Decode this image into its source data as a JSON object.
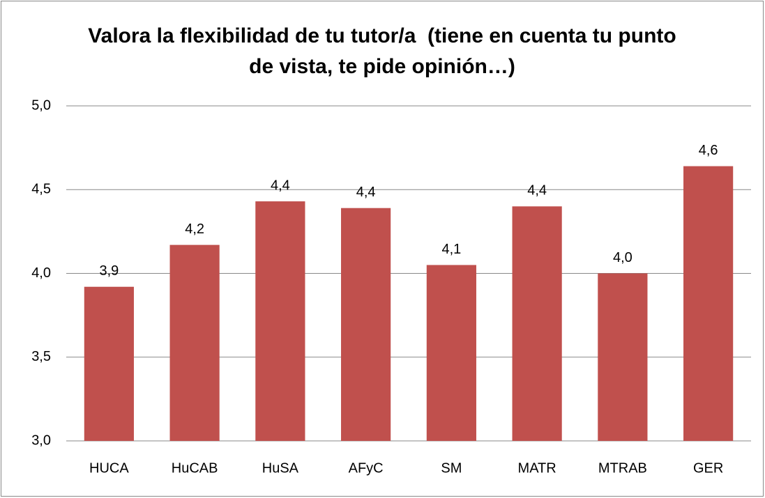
{
  "chart_data": {
    "type": "bar",
    "title": "Valora la flexibilidad de tu tutor/a  (tiene en cuenta tu punto de vista, te pide opinión…)",
    "categories": [
      "HUCA",
      "HuCAB",
      "HuSA",
      "AFyC",
      "SM",
      "MATR",
      "MTRAB",
      "GER"
    ],
    "values": [
      3.92,
      4.17,
      4.43,
      4.39,
      4.05,
      4.4,
      4.0,
      4.64
    ],
    "value_labels": [
      "3,9",
      "4,2",
      "4,4",
      "4,4",
      "4,1",
      "4,4",
      "4,0",
      "4,6"
    ],
    "color": "#c0504d",
    "ylim": [
      3,
      5
    ],
    "yticks": [
      {
        "value": 3,
        "label": "3,0"
      },
      {
        "value": 3.5,
        "label": "3,5"
      },
      {
        "value": 4,
        "label": "4,0"
      },
      {
        "value": 4.5,
        "label": "4,5"
      },
      {
        "value": 5,
        "label": "5,0"
      }
    ],
    "grid": true
  }
}
